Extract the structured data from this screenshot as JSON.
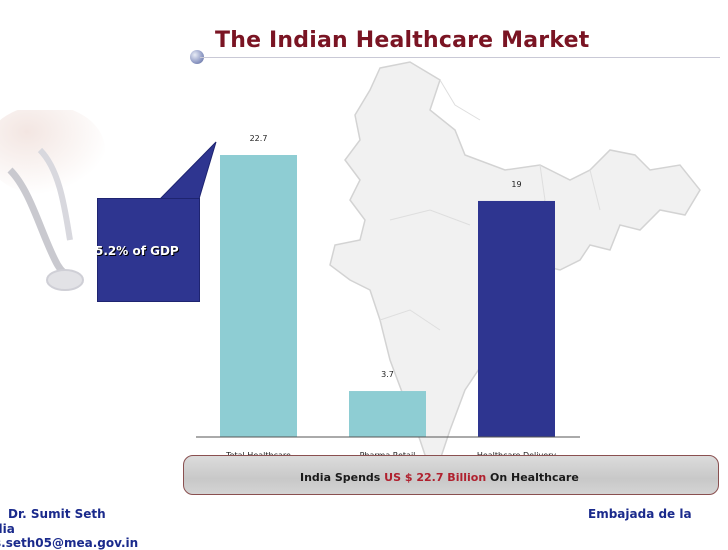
{
  "slide": {
    "title": "The Indian Healthcare Market",
    "callout": "5.2% of GDP"
  },
  "footer": {
    "prefix": "India Spends ",
    "amount": "US $ 22.7 Billion",
    "suffix": " On Healthcare"
  },
  "credits": {
    "presenter": "Dr. Sumit Seth",
    "embassy_line1": "Embajada de la",
    "embassy_line2": "dia",
    "email": "s.seth05@mea.gov.in"
  },
  "colors": {
    "title": "#7a1423",
    "bar_light": "#8ecdd3",
    "bar_dark": "#2e3590",
    "callout": "#2e3590",
    "footer_amount": "#b0202e",
    "credit_text": "#1a2a8c"
  },
  "chart_data": {
    "type": "bar",
    "categories": [
      "Total Healthcare Market",
      "Pharma Retail Market",
      "Healthcare Delivery Market"
    ],
    "category_lines": [
      [
        "Total Healthcare",
        "Market"
      ],
      [
        "Pharma Retail",
        "Market"
      ],
      [
        "Healthcare Delivery",
        "Market"
      ]
    ],
    "values": [
      22.7,
      3.7,
      19
    ],
    "value_labels": [
      "22.7",
      "3.7",
      "19"
    ],
    "bar_colors": [
      "#8ecdd3",
      "#8ecdd3",
      "#2e3590"
    ],
    "ylim": [
      0,
      22.7
    ],
    "grid": false,
    "legend": "none",
    "title": "",
    "xlabel": "",
    "ylabel": ""
  }
}
